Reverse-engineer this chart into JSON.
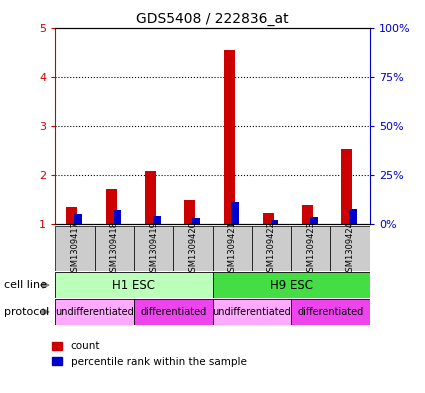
{
  "title": "GDS5408 / 222836_at",
  "samples": [
    "GSM1309417",
    "GSM1309418",
    "GSM1309419",
    "GSM1309420",
    "GSM1309421",
    "GSM1309422",
    "GSM1309423",
    "GSM1309424"
  ],
  "count_values": [
    1.35,
    1.72,
    2.08,
    1.48,
    4.55,
    1.22,
    1.38,
    2.52
  ],
  "percentile_pct": [
    5.0,
    7.0,
    4.0,
    3.0,
    11.0,
    2.0,
    3.5,
    7.5
  ],
  "ylim_left": [
    1,
    5
  ],
  "ylim_right": [
    0,
    100
  ],
  "yticks_left": [
    1,
    2,
    3,
    4,
    5
  ],
  "yticks_right": [
    0,
    25,
    50,
    75,
    100
  ],
  "ytick_labels_right": [
    "0%",
    "25%",
    "50%",
    "75%",
    "100%"
  ],
  "count_color": "#cc0000",
  "percentile_color": "#0000cc",
  "cell_line_groups": [
    {
      "label": "H1 ESC",
      "start": 0,
      "end": 3,
      "color": "#bbffbb"
    },
    {
      "label": "H9 ESC",
      "start": 4,
      "end": 7,
      "color": "#44dd44"
    }
  ],
  "protocol_groups": [
    {
      "label": "undifferentiated",
      "start": 0,
      "end": 1,
      "color": "#ffaaff"
    },
    {
      "label": "differentiated",
      "start": 2,
      "end": 3,
      "color": "#ee44ee"
    },
    {
      "label": "undifferentiated",
      "start": 4,
      "end": 5,
      "color": "#ffaaff"
    },
    {
      "label": "differentiated",
      "start": 6,
      "end": 7,
      "color": "#ee44ee"
    }
  ],
  "sample_bg_color": "#cccccc",
  "legend_count_label": "count",
  "legend_pct_label": "percentile rank within the sample",
  "cell_line_label": "cell line",
  "protocol_label": "protocol"
}
